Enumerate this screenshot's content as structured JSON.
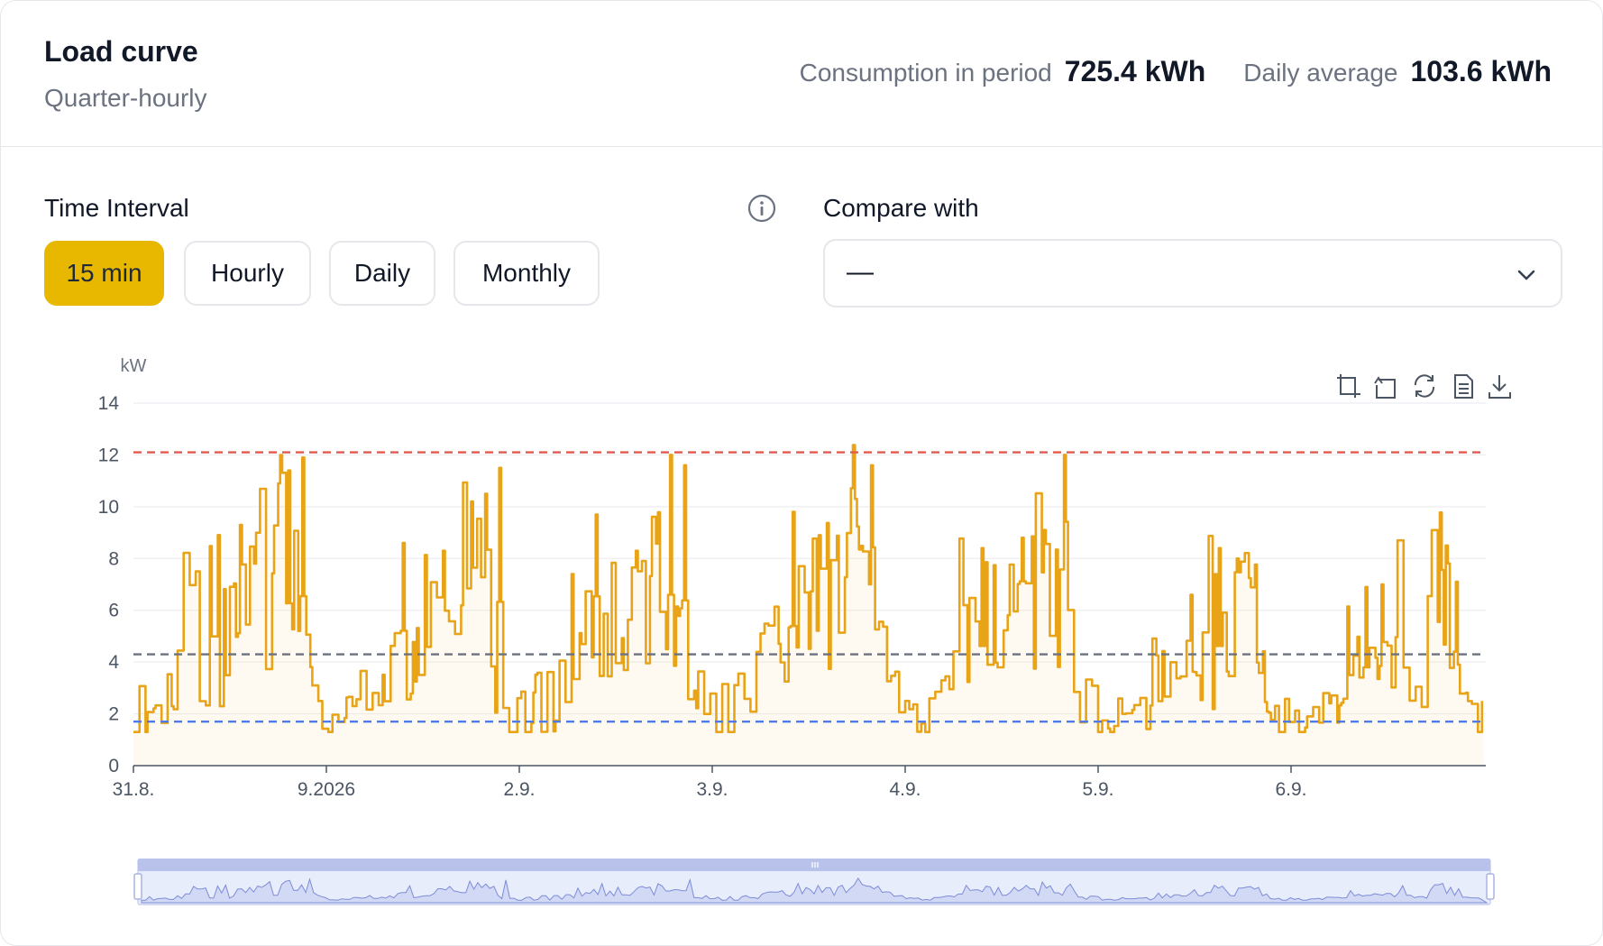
{
  "header": {
    "title": "Load curve",
    "subtitle": "Quarter-hourly",
    "consumption_label": "Consumption in period",
    "consumption_value": "725.4 kWh",
    "average_label": "Daily average",
    "average_value": "103.6 kWh"
  },
  "controls": {
    "interval_label": "Time Interval",
    "interval_options": [
      "15 min",
      "Hourly",
      "Daily",
      "Monthly"
    ],
    "interval_selected": "15 min",
    "compare_label": "Compare with",
    "compare_value": "—"
  },
  "toolbar": {
    "icons": [
      "zoom-select-icon",
      "zoom-reset-icon",
      "restore-icon",
      "data-view-icon",
      "download-icon"
    ]
  },
  "chart_data": {
    "type": "area",
    "ylabel": "kW",
    "ylim": [
      0,
      14
    ],
    "yticks": [
      "0",
      "2",
      "4",
      "6",
      "8",
      "10",
      "12",
      "14"
    ],
    "xticks": [
      "31.8.",
      "9.2026",
      "2.9.",
      "3.9.",
      "4.9.",
      "5.9.",
      "6.9."
    ],
    "interval_minutes": 15,
    "days": 7,
    "reference_lines": [
      {
        "value": 12.1,
        "color": "#e05a4e"
      },
      {
        "value": 4.3,
        "color": "#6b7280"
      },
      {
        "value": 1.7,
        "color": "#4f7be8"
      }
    ],
    "series_color": "#e8a317",
    "daily_profile": [
      [
        0,
        2.2
      ],
      [
        5,
        2.8
      ],
      [
        7,
        5.5
      ],
      [
        10,
        4.3
      ],
      [
        13,
        5.5
      ],
      [
        15,
        5.8
      ],
      [
        17,
        6.5
      ],
      [
        18,
        9.2
      ],
      [
        20,
        5.0
      ],
      [
        22,
        3.0
      ],
      [
        24,
        2.4
      ]
    ],
    "daily_scale": [
      1.0,
      1.0,
      1.05,
      1.05,
      0.95,
      0.75,
      0.75
    ],
    "peaks": [
      {
        "x": 0.55,
        "y": 9.3
      },
      {
        "x": 0.63,
        "y": 7.8
      },
      {
        "x": 0.75,
        "y": 10.9
      },
      {
        "x": 0.8,
        "y": 11.4
      },
      {
        "x": 0.88,
        "y": 11.9
      },
      {
        "x": 1.4,
        "y": 8.6
      },
      {
        "x": 1.6,
        "y": 8.3
      },
      {
        "x": 1.75,
        "y": 10.2
      },
      {
        "x": 1.82,
        "y": 10.5
      },
      {
        "x": 1.9,
        "y": 11.5
      },
      {
        "x": 2.4,
        "y": 9.7
      },
      {
        "x": 2.6,
        "y": 8.3
      },
      {
        "x": 2.78,
        "y": 12.0
      },
      {
        "x": 2.85,
        "y": 11.6
      },
      {
        "x": 3.42,
        "y": 9.8
      },
      {
        "x": 3.55,
        "y": 8.9
      },
      {
        "x": 3.74,
        "y": 10.3
      },
      {
        "x": 3.82,
        "y": 11.6
      },
      {
        "x": 4.4,
        "y": 8.4
      },
      {
        "x": 4.6,
        "y": 8.8
      },
      {
        "x": 4.72,
        "y": 9.1
      },
      {
        "x": 4.82,
        "y": 12.0
      },
      {
        "x": 5.48,
        "y": 6.6
      },
      {
        "x": 5.63,
        "y": 8.4
      },
      {
        "x": 5.72,
        "y": 8.0
      },
      {
        "x": 6.39,
        "y": 6.9
      },
      {
        "x": 6.47,
        "y": 7.0
      },
      {
        "x": 6.8,
        "y": 8.5
      },
      {
        "x": 6.85,
        "y": 7.1
      }
    ]
  }
}
